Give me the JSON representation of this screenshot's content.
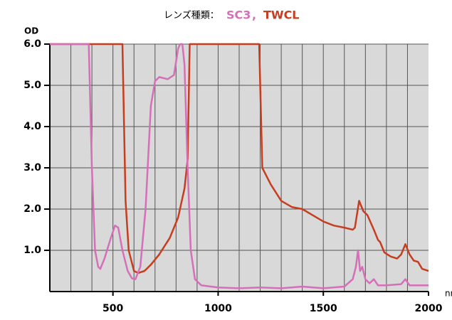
{
  "chart_data": {
    "type": "line",
    "title": "レンズ種類：",
    "title_separator": ",",
    "ylabel": "OD",
    "xlabel": "nm",
    "xlim": [
      200,
      2000
    ],
    "ylim": [
      0,
      6
    ],
    "xticks": [
      500,
      1000,
      1500,
      2000
    ],
    "xgrid": [
      300,
      400,
      500,
      600,
      700,
      800,
      900,
      1000,
      1100,
      1200,
      1300,
      1400,
      1500,
      1600,
      1700,
      1800,
      1900
    ],
    "yticks": [
      {
        "value": 1,
        "label": "1.0"
      },
      {
        "value": 2,
        "label": "2.0"
      },
      {
        "value": 3,
        "label": "3.0"
      },
      {
        "value": 4,
        "label": "4.0"
      },
      {
        "value": 5,
        "label": "5.0"
      },
      {
        "value": 6,
        "label": "6.0"
      }
    ],
    "grid": true,
    "series": [
      {
        "name": "TWCL",
        "color": "#c63d1f",
        "x": [
          200,
          545,
          560,
          575,
          600,
          620,
          650,
          680,
          720,
          770,
          810,
          840,
          855,
          865,
          1195,
          1210,
          1250,
          1300,
          1350,
          1400,
          1450,
          1500,
          1550,
          1600,
          1640,
          1650,
          1670,
          1690,
          1710,
          1740,
          1760,
          1770,
          1790,
          1820,
          1850,
          1870,
          1890,
          1910,
          1930,
          1950,
          1970,
          2000
        ],
        "values": [
          6,
          6,
          2.2,
          1.0,
          0.5,
          0.45,
          0.5,
          0.65,
          0.9,
          1.3,
          1.8,
          2.5,
          3.2,
          6,
          6,
          3.0,
          2.6,
          2.2,
          2.05,
          2.0,
          1.85,
          1.7,
          1.6,
          1.55,
          1.5,
          1.55,
          2.2,
          1.95,
          1.85,
          1.5,
          1.25,
          1.2,
          0.95,
          0.85,
          0.8,
          0.9,
          1.15,
          0.9,
          0.75,
          0.72,
          0.55,
          0.5
        ]
      },
      {
        "name": "SC3",
        "color": "#d46fb8",
        "x": [
          200,
          385,
          400,
          415,
          430,
          440,
          460,
          490,
          510,
          525,
          545,
          570,
          590,
          607,
          630,
          655,
          680,
          700,
          720,
          760,
          790,
          810,
          820,
          830,
          840,
          855,
          870,
          890,
          920,
          1000,
          1100,
          1200,
          1300,
          1400,
          1500,
          1600,
          1640,
          1655,
          1665,
          1675,
          1685,
          1700,
          1720,
          1740,
          1760,
          1800,
          1870,
          1890,
          1910,
          2000
        ],
        "values": [
          6,
          6,
          3.0,
          1.0,
          0.6,
          0.55,
          0.8,
          1.3,
          1.6,
          1.55,
          1.0,
          0.5,
          0.32,
          0.3,
          0.6,
          2.0,
          4.5,
          5.1,
          5.2,
          5.15,
          5.25,
          5.9,
          6,
          6,
          5.5,
          3.0,
          1.0,
          0.3,
          0.15,
          0.1,
          0.08,
          0.1,
          0.08,
          0.12,
          0.08,
          0.12,
          0.3,
          0.6,
          1.0,
          0.5,
          0.6,
          0.3,
          0.2,
          0.3,
          0.15,
          0.15,
          0.18,
          0.3,
          0.15,
          0.15
        ]
      }
    ]
  }
}
